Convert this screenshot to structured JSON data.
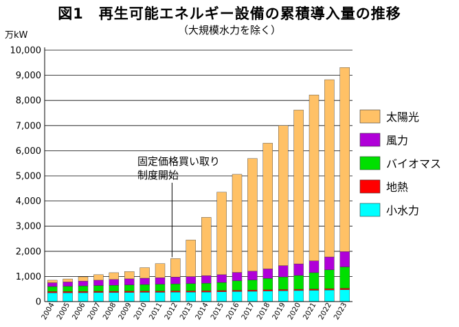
{
  "title": "図1　再生可能エネルギー設備の累積導入量の推移",
  "subtitle": "（大規模水力を除く）",
  "chart_data": {
    "type": "bar",
    "stacked": true,
    "ylabel": "万kW",
    "ylim": [
      0,
      10000
    ],
    "yticks": [
      "0",
      "1,000",
      "2,000",
      "3,000",
      "4,000",
      "5,000",
      "6,000",
      "7,000",
      "8,000",
      "9,000",
      "10,000"
    ],
    "grid": "horizontal",
    "legend_position": "right",
    "categories": [
      "2004",
      "2005",
      "2006",
      "2007",
      "2008",
      "2009",
      "2010",
      "2011",
      "2012",
      "2013",
      "2014",
      "2015",
      "2016",
      "2017",
      "2018",
      "2019",
      "2020",
      "2021",
      "2022",
      "2023"
    ],
    "series": [
      {
        "name": "小水力",
        "color": "#00ffff",
        "values": [
          350,
          350,
          355,
          360,
          360,
          365,
          370,
          370,
          375,
          375,
          380,
          390,
          400,
          410,
          420,
          430,
          440,
          450,
          460,
          470
        ]
      },
      {
        "name": "地熱",
        "color": "#ff0000",
        "values": [
          50,
          50,
          50,
          50,
          50,
          50,
          50,
          50,
          50,
          50,
          50,
          50,
          50,
          50,
          50,
          50,
          50,
          50,
          55,
          60
        ]
      },
      {
        "name": "バイオマス",
        "color": "#00e000",
        "values": [
          200,
          210,
          220,
          230,
          240,
          250,
          260,
          270,
          280,
          290,
          300,
          320,
          380,
          400,
          450,
          500,
          550,
          650,
          750,
          850
        ]
      },
      {
        "name": "風力",
        "color": "#b000d8",
        "values": [
          150,
          170,
          190,
          210,
          230,
          240,
          250,
          260,
          270,
          280,
          300,
          310,
          330,
          350,
          380,
          450,
          460,
          470,
          510,
          610
        ]
      },
      {
        "name": "太陽光",
        "color": "#ffc166",
        "values": [
          100,
          120,
          170,
          220,
          270,
          290,
          420,
          560,
          735,
          1455,
          2320,
          3280,
          3900,
          4480,
          5000,
          5570,
          6120,
          6600,
          7050,
          7320
        ]
      }
    ],
    "legend_order": [
      "太陽光",
      "風力",
      "バイオマス",
      "地熱",
      "小水力"
    ],
    "annotations": [
      {
        "lines": [
          "固定価格買い取り",
          "制度開始"
        ],
        "category": "2012"
      }
    ]
  }
}
